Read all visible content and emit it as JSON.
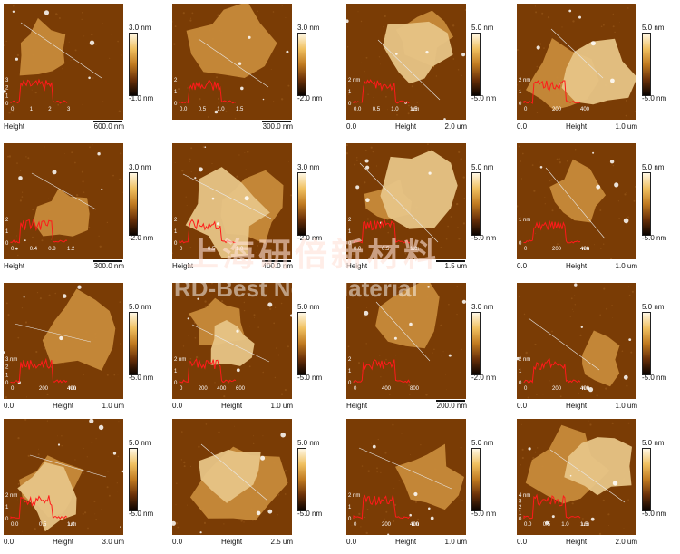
{
  "colors": {
    "substrate": "#7a3c05",
    "flake": "#c78a3a",
    "flake_light": "#e7c486",
    "particle": "#ffffff",
    "profile": "#ff1a1a"
  },
  "panels": [
    {
      "id": "r1c1",
      "height_label": "Height",
      "scale_label": "600.0 nm",
      "range_max": "3.0 nm",
      "range_min": "-1.0 nm",
      "profile_ticks": [
        "0",
        "1",
        "2",
        "3"
      ],
      "profile_y": [
        "3",
        "2",
        "1",
        "0"
      ],
      "profile_unit": ""
    },
    {
      "id": "r1c2",
      "height_label": "",
      "scale_label": "300.0 nm",
      "range_max": "3.0 nm",
      "range_min": "-2.0 nm",
      "profile_ticks": [
        "0.0",
        "0.5",
        "1.0",
        "1.5"
      ],
      "profile_y": [
        "2",
        "1",
        "0"
      ],
      "profile_unit": ""
    },
    {
      "id": "r1c3",
      "left_label": "0.0",
      "height_label": "Height",
      "scale_label": "2.0 um",
      "range_max": "5.0 nm",
      "range_min": "-5.0 nm",
      "profile_ticks": [
        "0.0",
        "0.5",
        "1.0",
        "1.5"
      ],
      "profile_y": [
        "2 nm",
        "1",
        "0"
      ],
      "profile_unit": "um"
    },
    {
      "id": "r1c4",
      "left_label": "0.0",
      "height_label": "Height",
      "scale_label": "1.0 um",
      "range_max": "5.0 nm",
      "range_min": "-5.0 nm",
      "profile_ticks": [
        "0",
        "200",
        "400"
      ],
      "profile_y": [
        "2 nm",
        "1",
        "0"
      ],
      "profile_unit": ""
    },
    {
      "id": "r2c1",
      "height_label": "Height",
      "scale_label": "300.0 nm",
      "range_max": "3.0 nm",
      "range_min": "-2.0 nm",
      "profile_ticks": [
        "0",
        "0.4",
        "0.8",
        "1.2"
      ],
      "profile_y": [
        "2",
        "1",
        "0"
      ],
      "profile_unit": ""
    },
    {
      "id": "r2c2",
      "height_label": "Height",
      "scale_label": "400.0 nm",
      "range_max": "3.0 nm",
      "range_min": "-2.0 nm",
      "profile_ticks": [
        "0",
        "0.5",
        "1.0"
      ],
      "profile_y": [
        "2",
        "1",
        "0"
      ],
      "profile_unit": ""
    },
    {
      "id": "r2c3",
      "left_label": "",
      "height_label": "Height",
      "scale_label": "1.5 um",
      "range_max": "5.0 nm",
      "range_min": "-5.0 nm",
      "profile_ticks": [
        "0.0",
        "0.5",
        "1.0"
      ],
      "profile_y": [
        "2",
        "1",
        "0"
      ],
      "profile_unit": "um"
    },
    {
      "id": "r2c4",
      "left_label": "0.0",
      "height_label": "Height",
      "scale_label": "1.0 um",
      "range_max": "5.0 nm",
      "range_min": "-5.0 nm",
      "profile_ticks": [
        "0",
        "200",
        "400"
      ],
      "profile_y": [
        "1 nm",
        "0"
      ],
      "profile_unit": "nm"
    },
    {
      "id": "r3c1",
      "left_label": "0.0",
      "height_label": "Height",
      "scale_label": "1.0 um",
      "range_max": "5.0 nm",
      "range_min": "-5.0 nm",
      "profile_ticks": [
        "0",
        "200",
        "400"
      ],
      "profile_y": [
        "3 nm",
        "2",
        "1",
        "0"
      ],
      "profile_unit": "nm"
    },
    {
      "id": "r3c2",
      "left_label": "0.0",
      "height_label": "Height",
      "scale_label": "1.0 um",
      "range_max": "5.0 nm",
      "range_min": "-5.0 nm",
      "profile_ticks": [
        "0",
        "200",
        "400",
        "600"
      ],
      "profile_y": [
        "2 nm",
        "1",
        "0"
      ],
      "profile_unit": ""
    },
    {
      "id": "r3c3",
      "height_label": "Height",
      "scale_label": "200.0 nm",
      "range_max": "3.0 nm",
      "range_min": "-2.0 nm",
      "profile_ticks": [
        "0",
        "400",
        "800"
      ],
      "profile_y": [
        "2",
        "1",
        "0"
      ],
      "profile_unit": ""
    },
    {
      "id": "r3c4",
      "left_label": "0.0",
      "height_label": "Height",
      "scale_label": "1.0 um",
      "range_max": "5.0 nm",
      "range_min": "-5.0 nm",
      "profile_ticks": [
        "0",
        "200",
        "400"
      ],
      "profile_y": [
        "2 nm",
        "1",
        "0"
      ],
      "profile_unit": "nm"
    },
    {
      "id": "r4c1",
      "left_label": "0.0",
      "height_label": "Height",
      "scale_label": "3.0 um",
      "range_max": "5.0 nm",
      "range_min": "-5.0 nm",
      "profile_ticks": [
        "0.0",
        "0.5",
        "1.0"
      ],
      "profile_y": [
        "2 nm",
        "1",
        "0"
      ],
      "profile_unit": "um"
    },
    {
      "id": "r4c2",
      "left_label": "0.0",
      "height_label": "Height",
      "scale_label": "2.5 um",
      "range_max": "5.0 nm",
      "range_min": "-5.0 nm",
      "profile_ticks": [],
      "profile_y": [],
      "profile_unit": ""
    },
    {
      "id": "r4c3",
      "left_label": "0.0",
      "height_label": "Height",
      "scale_label": "1.0 um",
      "range_max": "5.0 nm",
      "range_min": "-5.0 nm",
      "profile_ticks": [
        "0",
        "200",
        "400"
      ],
      "profile_y": [
        "2 nm",
        "1",
        "0"
      ],
      "profile_unit": "nm"
    },
    {
      "id": "r4c4",
      "left_label": "0.0",
      "height_label": "Height",
      "scale_label": "2.0 um",
      "range_max": "5.0 nm",
      "range_min": "-5.0 nm",
      "profile_ticks": [
        "0.0",
        "0.5",
        "1.0",
        "1.5"
      ],
      "profile_y": [
        "4 nm",
        "3",
        "2",
        "1",
        "0"
      ],
      "profile_unit": "um"
    }
  ],
  "watermark": {
    "chinese": "上海研倍新材料",
    "english": "RD-Best New Material"
  }
}
